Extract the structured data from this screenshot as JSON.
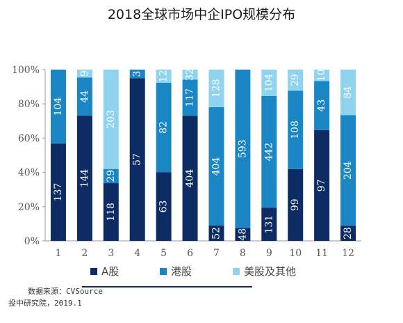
{
  "chart_data": {
    "type": "bar",
    "stacked": "percent",
    "title": "2018全球市场中企IPO规模分布",
    "categories": [
      "1",
      "2",
      "3",
      "4",
      "5",
      "6",
      "7",
      "8",
      "9",
      "10",
      "11",
      "12"
    ],
    "series": [
      {
        "name": "A股",
        "color": "#0c2c63",
        "values": [
          137,
          144,
          118,
          57,
          63,
          404,
          52,
          48,
          131,
          99,
          97,
          28
        ]
      },
      {
        "name": "港股",
        "color": "#1a86c4",
        "values": [
          104,
          44,
          29,
          3,
          82,
          117,
          404,
          593,
          442,
          108,
          43,
          204
        ]
      },
      {
        "name": "美股及其他",
        "color": "#8fd3ee",
        "values": [
          0,
          9,
          203,
          0,
          12,
          32,
          128,
          0,
          104,
          29,
          10,
          84
        ]
      }
    ],
    "yticks": [
      "0%",
      "20%",
      "40%",
      "60%",
      "80%",
      "100%"
    ],
    "ylim": [
      0,
      100
    ],
    "legend_position": "bottom",
    "grid": false
  },
  "source": {
    "text": "数据来源：CVSource",
    "institute": "投中研究院，2019.1"
  }
}
